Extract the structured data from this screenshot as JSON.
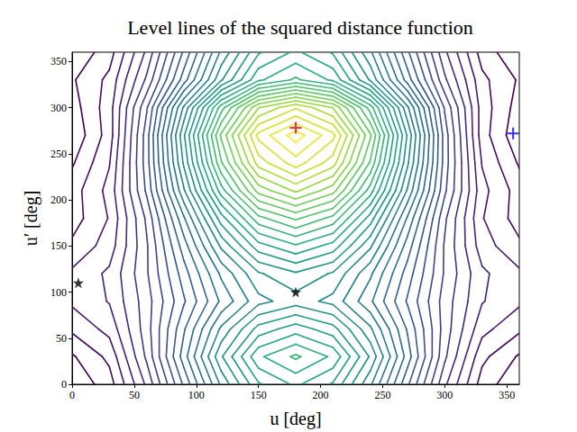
{
  "chart_data": {
    "type": "contour",
    "title": "Level lines of the squared distance function",
    "x_label": "u [deg]",
    "y_label": "u′ [deg]",
    "xlim": [
      0,
      360
    ],
    "ylim": [
      0,
      360
    ],
    "xticks": [
      0,
      50,
      100,
      150,
      200,
      250,
      300,
      350
    ],
    "yticks": [
      0,
      50,
      100,
      150,
      200,
      250,
      300,
      350
    ],
    "grid": false,
    "x": [
      0,
      30,
      60,
      90,
      120,
      150,
      180,
      210,
      240,
      270,
      300,
      330,
      360
    ],
    "y": [
      0,
      30,
      60,
      90,
      120,
      150,
      180,
      210,
      240,
      270,
      300,
      330,
      360
    ],
    "z": [
      [
        0,
        0.2,
        0.75,
        1.5,
        2.25,
        2.8,
        3,
        2.8,
        2.25,
        1.5,
        0.75,
        0.2,
        0
      ],
      [
        0.1,
        0.31,
        0.9,
        1.7,
        2.5,
        3.09,
        3.3,
        3.09,
        2.5,
        1.7,
        0.9,
        0.31,
        0.1
      ],
      [
        0.3,
        0.47,
        0.95,
        1.6,
        2.25,
        2.73,
        2.9,
        2.73,
        2.25,
        1.6,
        0.95,
        0.47,
        0.3
      ],
      [
        0.45,
        0.58,
        0.95,
        1.45,
        1.95,
        2.32,
        2.45,
        2.32,
        1.95,
        1.45,
        0.95,
        0.58,
        0.45
      ],
      [
        0.45,
        0.6,
        1,
        1.55,
        2.1,
        2.5,
        2.65,
        2.5,
        2.1,
        1.55,
        1,
        0.6,
        0.45
      ],
      [
        0.3,
        0.49,
        1,
        1.7,
        2.4,
        2.91,
        3.1,
        2.91,
        2.4,
        1.7,
        1,
        0.49,
        0.3
      ],
      [
        0.2,
        0.43,
        1.05,
        1.9,
        2.75,
        3.37,
        3.6,
        3.37,
        2.75,
        1.9,
        1.05,
        0.43,
        0.2
      ],
      [
        0.2,
        0.47,
        1.2,
        2.2,
        3.2,
        3.93,
        4.2,
        3.93,
        3.2,
        2.2,
        1.2,
        0.47,
        0.2
      ],
      [
        0.1,
        0.41,
        1.25,
        2.4,
        3.55,
        4.39,
        4.7,
        4.39,
        3.55,
        2.4,
        1.25,
        0.41,
        0.1
      ],
      [
        0,
        0.34,
        1.25,
        2.5,
        3.75,
        4.67,
        5,
        4.67,
        3.75,
        2.5,
        1.25,
        0.34,
        0
      ],
      [
        0.05,
        0.35,
        1.15,
        2.25,
        3.35,
        4.16,
        4.45,
        4.16,
        3.35,
        2.25,
        1.15,
        0.35,
        0.05
      ],
      [
        0.1,
        0.31,
        0.9,
        1.7,
        2.5,
        3.09,
        3.3,
        3.09,
        2.5,
        1.7,
        0.9,
        0.31,
        0.1
      ],
      [
        0,
        0.2,
        0.75,
        1.5,
        2.25,
        2.8,
        3,
        2.8,
        2.25,
        1.5,
        0.75,
        0.2,
        0
      ]
    ],
    "levels": [
      0.12,
      0.27,
      0.42,
      0.57,
      0.72,
      0.87,
      1.02,
      1.17,
      1.32,
      1.47,
      1.62,
      1.77,
      1.92,
      2.07,
      2.22,
      2.37,
      2.52,
      2.67,
      2.82,
      2.97,
      3.12,
      3.27,
      3.42,
      3.57,
      3.72,
      3.87,
      4.02,
      4.17,
      4.32,
      4.47,
      4.62,
      4.77,
      4.92
    ],
    "series": [
      {
        "type": "scatter",
        "marker": "plus",
        "color": "#ff0000",
        "x": [
          180
        ],
        "y": [
          278
        ]
      },
      {
        "type": "scatter",
        "marker": "plus",
        "color": "#0000ff",
        "x": [
          355
        ],
        "y": [
          272
        ]
      },
      {
        "type": "scatter",
        "marker": "star",
        "color": "#000000",
        "x": [
          5,
          180
        ],
        "y": [
          110,
          100
        ]
      }
    ]
  }
}
